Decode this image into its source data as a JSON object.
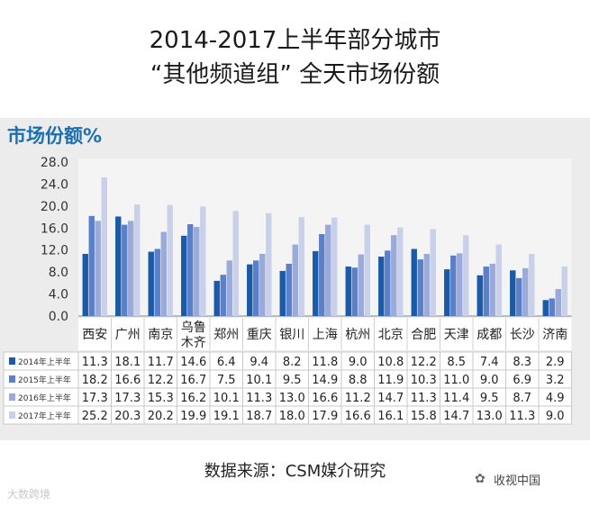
{
  "header": {
    "title_line1": "2014-2017上半年部分城市",
    "title_line2": "“其他频道组”   全天市场份额"
  },
  "footer": {
    "source": "数据来源：CSM媒介研究",
    "wechat_name": "收视中国",
    "watermark": "大数跨境"
  },
  "colors": {
    "series": [
      "#1b5aa6",
      "#5b7fc8",
      "#9aaadb",
      "#c9d0ea"
    ],
    "subtitle": "#1b6fb0",
    "panel": "#ececec"
  },
  "chart_data": {
    "type": "bar",
    "title": "市场份额%",
    "categories": [
      "西安",
      "广州",
      "南京",
      "乌鲁木齐",
      "郑州",
      "重庆",
      "银川",
      "上海",
      "杭州",
      "北京",
      "合肥",
      "天津",
      "成都",
      "长沙",
      "济南"
    ],
    "category_lines": [
      [
        "西安"
      ],
      [
        "广州"
      ],
      [
        "南京"
      ],
      [
        "乌鲁",
        "木齐"
      ],
      [
        "郑州"
      ],
      [
        "重庆"
      ],
      [
        "银川"
      ],
      [
        "上海"
      ],
      [
        "杭州"
      ],
      [
        "北京"
      ],
      [
        "合肥"
      ],
      [
        "天津"
      ],
      [
        "成都"
      ],
      [
        "长沙"
      ],
      [
        "济南"
      ]
    ],
    "series": [
      {
        "name": "2014年上半年",
        "values": [
          11.3,
          18.1,
          11.7,
          14.6,
          6.4,
          9.4,
          8.2,
          11.8,
          9.0,
          10.8,
          12.2,
          8.5,
          7.4,
          8.3,
          2.9
        ]
      },
      {
        "name": "2015年上半年",
        "values": [
          18.2,
          16.6,
          12.2,
          16.7,
          7.5,
          10.1,
          9.5,
          14.9,
          8.8,
          11.9,
          10.3,
          11.0,
          9.0,
          6.9,
          3.2
        ]
      },
      {
        "name": "2016年上半年",
        "values": [
          17.3,
          17.3,
          15.3,
          16.2,
          10.1,
          11.3,
          13.0,
          16.6,
          11.2,
          14.7,
          11.3,
          11.4,
          9.5,
          8.7,
          4.9
        ]
      },
      {
        "name": "2017年上半年",
        "values": [
          25.2,
          20.3,
          20.2,
          19.9,
          19.1,
          18.7,
          18.0,
          17.9,
          16.6,
          16.1,
          15.8,
          14.7,
          13.0,
          11.3,
          9.0
        ]
      }
    ],
    "yticks": [
      "0.0",
      "4.0",
      "8.0",
      "12.0",
      "16.0",
      "20.0",
      "24.0",
      "28.0"
    ],
    "ylim": [
      0,
      28
    ],
    "table_values": [
      [
        "11.3",
        "18.1",
        "11.7",
        "14.6",
        "6.4",
        "9.4",
        "8.2",
        "11.8",
        "9.0",
        "10.8",
        "12.2",
        "8.5",
        "7.4",
        "8.3",
        "2.9"
      ],
      [
        "18.2",
        "16.6",
        "12.2",
        "16.7",
        "7.5",
        "10.1",
        "9.5",
        "14.9",
        "8.8",
        "11.9",
        "10.3",
        "11.0",
        "9.0",
        "6.9",
        "3.2"
      ],
      [
        "17.3",
        "17.3",
        "15.3",
        "16.2",
        "10.1",
        "11.3",
        "13.0",
        "16.6",
        "11.2",
        "14.7",
        "11.3",
        "11.4",
        "9.5",
        "8.7",
        "4.9"
      ],
      [
        "25.2",
        "20.3",
        "20.2",
        "19.9",
        "19.1",
        "18.7",
        "18.0",
        "17.9",
        "16.6",
        "16.1",
        "15.8",
        "14.7",
        "13.0",
        "11.3",
        "9.0"
      ]
    ],
    "grid": false,
    "legend": "table-left"
  }
}
